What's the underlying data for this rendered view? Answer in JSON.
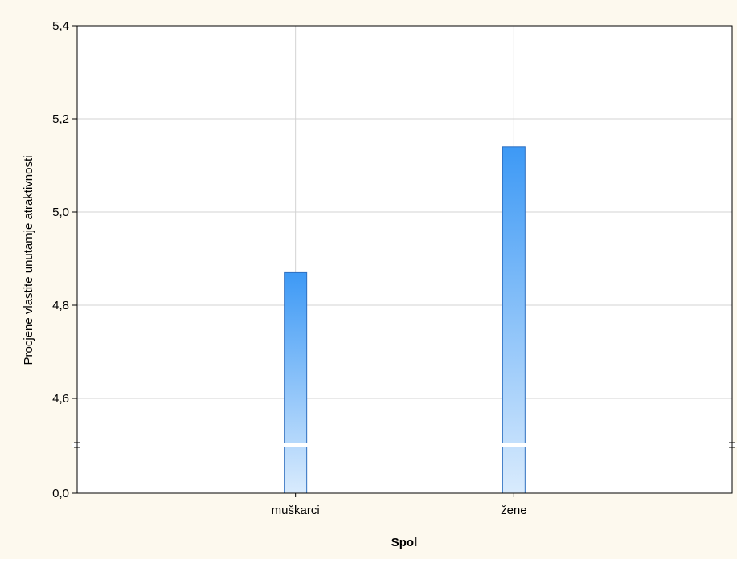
{
  "chart_data": {
    "type": "bar",
    "categories": [
      "muškarci",
      "žene"
    ],
    "values": [
      4.87,
      5.14
    ],
    "xlabel": "Spol",
    "ylabel": "Procjene vlastite unutarnje atraktivnosti",
    "ylim": [
      4.5,
      5.4
    ],
    "axis_break": true,
    "lower_tick": "0,0",
    "yticks": [
      "4,6",
      "4,8",
      "5,0",
      "5,2",
      "5,4"
    ],
    "yticks_values": [
      4.6,
      4.8,
      5.0,
      5.2,
      5.4
    ],
    "grid": true,
    "colors": {
      "background": "#FDF9EE",
      "plot_bg": "#FFFFFF",
      "bar_top": "#3D99F5",
      "bar_bottom": "#D9EBFD",
      "bar_stroke": "#2E6FC0",
      "grid": "#D3D3D3"
    }
  }
}
